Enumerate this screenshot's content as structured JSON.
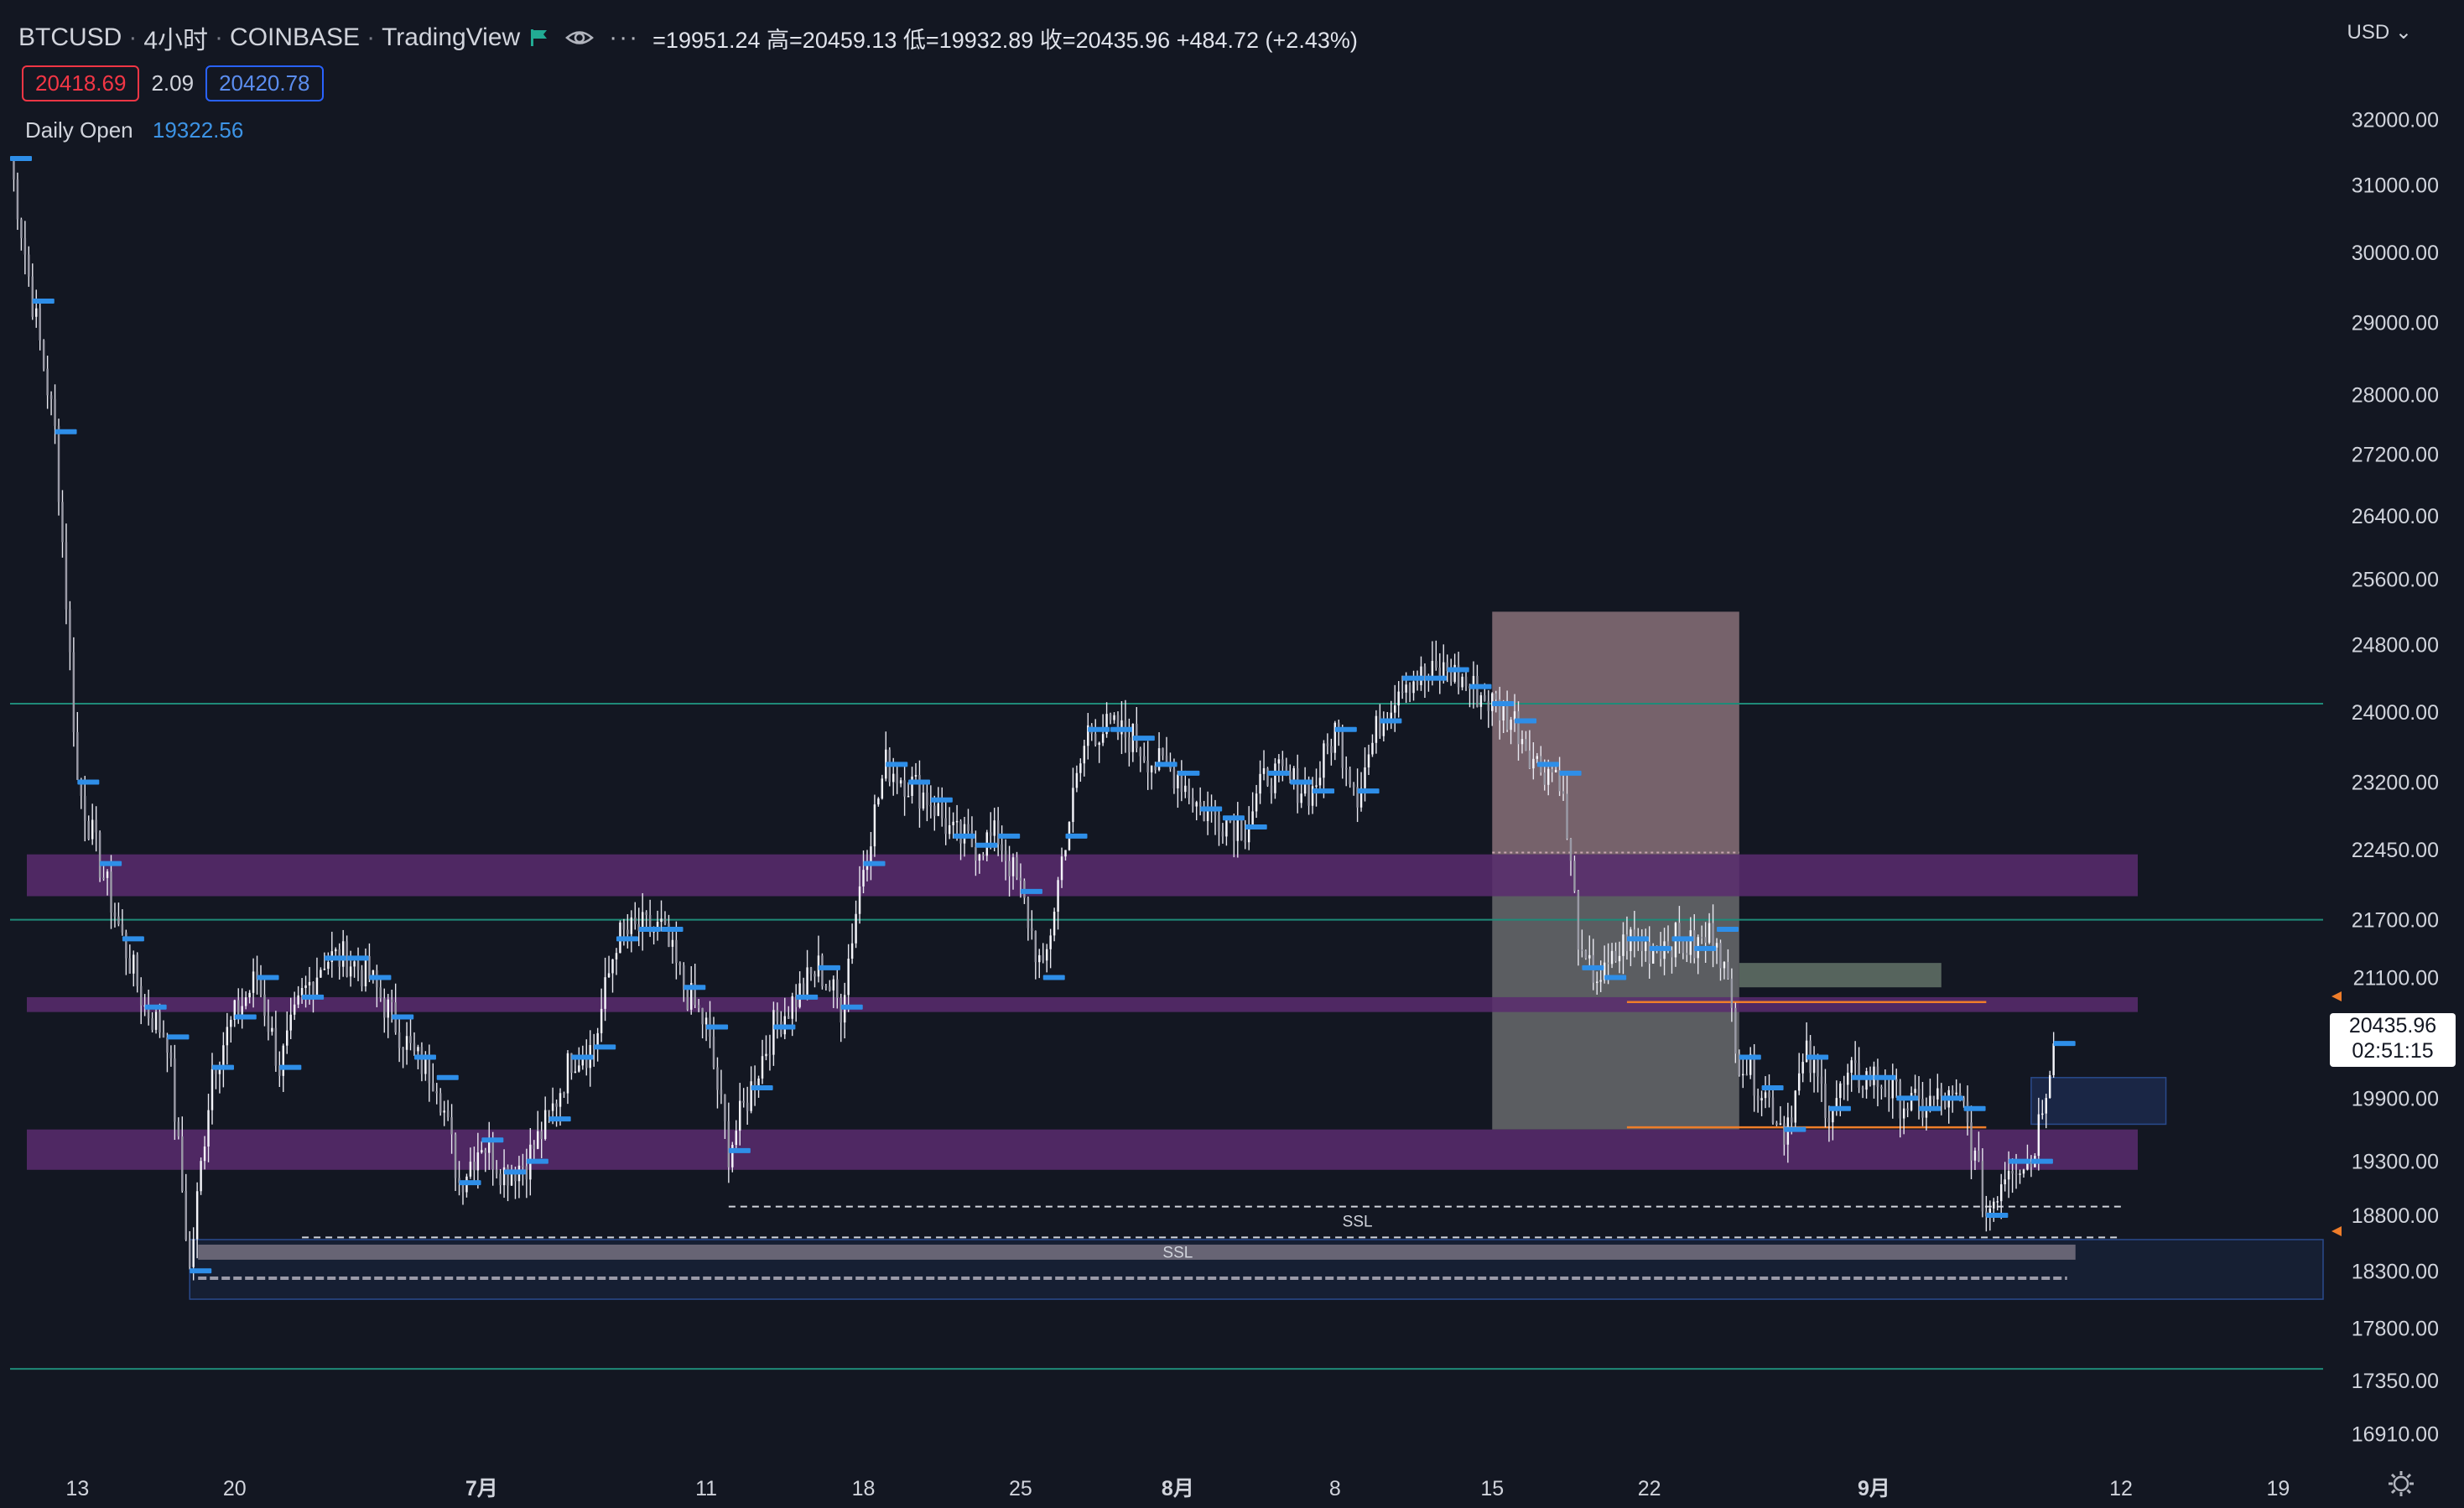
{
  "header": {
    "symbol": "BTCUSD",
    "interval": "4小时",
    "exchange": "COINBASE",
    "platform": "TradingView",
    "ohlc_text": "=19951.24 高=20459.13 低=19932.89 收=20435.96 +484.72 (+2.43%)",
    "bid": "20418.69",
    "spread": "2.09",
    "ask": "20420.78",
    "daily_open_label": "Daily Open",
    "daily_open_value": "19322.56",
    "currency": "USD"
  },
  "last_price": {
    "price": "20435.96",
    "countdown": "02:51:15"
  },
  "colors": {
    "background": "#131722",
    "candle": "#e8e8f0",
    "daily_open_marker": "#2e8ee8",
    "purple_zone": "#5a2b6e",
    "teal_line": "#1f8a78",
    "orange_line": "#ef7d2a",
    "rect_pink": "#c8a0a8",
    "rect_grey": "#8c8c8c",
    "green_box": "#6d7f72",
    "blue_box": "#1e2e54"
  },
  "icons": [
    "flag-icon",
    "eye-icon",
    "more-icon",
    "settings-icon"
  ],
  "chart_data": {
    "type": "candlestick",
    "title": "",
    "y_axis_ticks": [
      "32000.00",
      "31000.00",
      "30000.00",
      "29000.00",
      "28000.00",
      "27200.00",
      "26400.00",
      "25600.00",
      "24800.00",
      "24000.00",
      "23200.00",
      "22450.00",
      "21700.00",
      "21100.00",
      "19900.00",
      "19300.00",
      "18800.00",
      "18300.00",
      "17800.00",
      "17350.00",
      "16910.00"
    ],
    "x_axis_ticks": [
      "13",
      "20",
      "7月",
      "11",
      "18",
      "25",
      "8月",
      "8",
      "15",
      "22",
      "9月",
      "12",
      "19"
    ],
    "x_range": [
      "2022-06-10",
      "2022-09-21"
    ],
    "y_range_log": [
      16700,
      33500
    ],
    "close_path": [
      [
        "2022-06-10",
        31400
      ],
      [
        "2022-06-11",
        29300
      ],
      [
        "2022-06-12",
        27500
      ],
      [
        "2022-06-13",
        23200
      ],
      [
        "2022-06-14",
        22300
      ],
      [
        "2022-06-15",
        21500
      ],
      [
        "2022-06-16",
        20800
      ],
      [
        "2022-06-17",
        20500
      ],
      [
        "2022-06-18",
        18300
      ],
      [
        "2022-06-19",
        20200
      ],
      [
        "2022-06-20",
        20700
      ],
      [
        "2022-06-21",
        21100
      ],
      [
        "2022-06-22",
        20200
      ],
      [
        "2022-06-23",
        20900
      ],
      [
        "2022-06-24",
        21300
      ],
      [
        "2022-06-25",
        21300
      ],
      [
        "2022-06-26",
        21100
      ],
      [
        "2022-06-27",
        20700
      ],
      [
        "2022-06-28",
        20300
      ],
      [
        "2022-06-29",
        20100
      ],
      [
        "2022-06-30",
        19100
      ],
      [
        "2022-07-01",
        19500
      ],
      [
        "2022-07-02",
        19200
      ],
      [
        "2022-07-03",
        19300
      ],
      [
        "2022-07-04",
        19700
      ],
      [
        "2022-07-05",
        20300
      ],
      [
        "2022-07-06",
        20400
      ],
      [
        "2022-07-07",
        21500
      ],
      [
        "2022-07-08",
        21600
      ],
      [
        "2022-07-09",
        21600
      ],
      [
        "2022-07-10",
        21000
      ],
      [
        "2022-07-11",
        20600
      ],
      [
        "2022-07-12",
        19400
      ],
      [
        "2022-07-13",
        20000
      ],
      [
        "2022-07-14",
        20600
      ],
      [
        "2022-07-15",
        20900
      ],
      [
        "2022-07-16",
        21200
      ],
      [
        "2022-07-17",
        20800
      ],
      [
        "2022-07-18",
        22300
      ],
      [
        "2022-07-19",
        23400
      ],
      [
        "2022-07-20",
        23200
      ],
      [
        "2022-07-21",
        23000
      ],
      [
        "2022-07-22",
        22600
      ],
      [
        "2022-07-23",
        22500
      ],
      [
        "2022-07-24",
        22600
      ],
      [
        "2022-07-25",
        22000
      ],
      [
        "2022-07-26",
        21100
      ],
      [
        "2022-07-27",
        22600
      ],
      [
        "2022-07-28",
        23800
      ],
      [
        "2022-07-29",
        23800
      ],
      [
        "2022-07-30",
        23700
      ],
      [
        "2022-07-31",
        23400
      ],
      [
        "2022-08-01",
        23300
      ],
      [
        "2022-08-02",
        22900
      ],
      [
        "2022-08-03",
        22800
      ],
      [
        "2022-08-04",
        22700
      ],
      [
        "2022-08-05",
        23300
      ],
      [
        "2022-08-06",
        23200
      ],
      [
        "2022-08-07",
        23100
      ],
      [
        "2022-08-08",
        23800
      ],
      [
        "2022-08-09",
        23100
      ],
      [
        "2022-08-10",
        23900
      ],
      [
        "2022-08-11",
        24400
      ],
      [
        "2022-08-12",
        24400
      ],
      [
        "2022-08-13",
        24500
      ],
      [
        "2022-08-14",
        24300
      ],
      [
        "2022-08-15",
        24100
      ],
      [
        "2022-08-16",
        23900
      ],
      [
        "2022-08-17",
        23400
      ],
      [
        "2022-08-18",
        23300
      ],
      [
        "2022-08-19",
        21200
      ],
      [
        "2022-08-20",
        21100
      ],
      [
        "2022-08-21",
        21500
      ],
      [
        "2022-08-22",
        21400
      ],
      [
        "2022-08-23",
        21500
      ],
      [
        "2022-08-24",
        21400
      ],
      [
        "2022-08-25",
        21600
      ],
      [
        "2022-08-26",
        20300
      ],
      [
        "2022-08-27",
        20000
      ],
      [
        "2022-08-28",
        19600
      ],
      [
        "2022-08-29",
        20300
      ],
      [
        "2022-08-30",
        19800
      ],
      [
        "2022-08-31",
        20100
      ],
      [
        "2022-09-01",
        20100
      ],
      [
        "2022-09-02",
        19900
      ],
      [
        "2022-09-03",
        19800
      ],
      [
        "2022-09-04",
        19900
      ],
      [
        "2022-09-05",
        19800
      ],
      [
        "2022-09-06",
        18800
      ],
      [
        "2022-09-07",
        19300
      ],
      [
        "2022-09-08",
        19300
      ],
      [
        "2022-09-09",
        20435.96
      ]
    ],
    "horizontal_lines": [
      {
        "name": "teal-line-upper",
        "price": 24100
      },
      {
        "name": "teal-line-middle",
        "price": 21700
      },
      {
        "name": "teal-line-lower",
        "price": 17450
      }
    ],
    "zones": [
      {
        "name": "purple-zone-upper",
        "from_price": 21950,
        "to_price": 22400,
        "start": "2022-06-10",
        "end": "2022-09-12"
      },
      {
        "name": "purple-zone-middle",
        "from_price": 20750,
        "to_price": 20900,
        "start": "2022-06-10",
        "end": "2022-09-12"
      },
      {
        "name": "purple-zone-lower",
        "from_price": 19220,
        "to_price": 19600,
        "start": "2022-06-10",
        "end": "2022-09-12"
      },
      {
        "name": "ssl-zone",
        "from_price": 18050,
        "to_price": 18580,
        "start": "2022-06-18",
        "end": "2022-09-21"
      }
    ],
    "annotations": [
      "SSL",
      "SSL"
    ],
    "daily_open": 19322.56
  }
}
